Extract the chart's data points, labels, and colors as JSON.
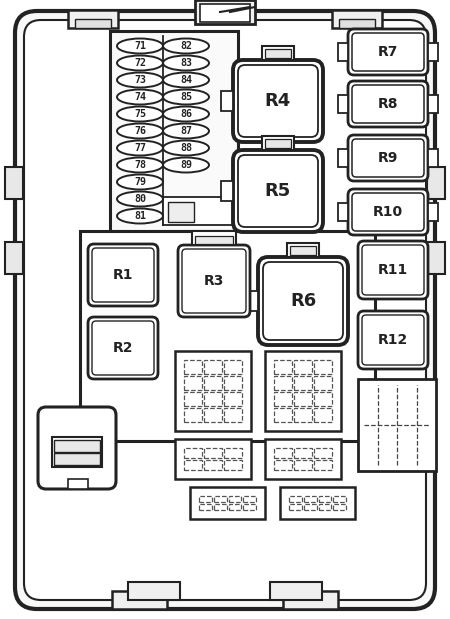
{
  "bg_color": "#ffffff",
  "line_color": "#222222",
  "fuse_left": [
    71,
    72,
    73,
    74,
    75,
    76,
    77,
    78,
    79,
    80,
    81
  ],
  "fuse_right": [
    82,
    83,
    84,
    85,
    86,
    87,
    88,
    89
  ],
  "relay_labels_tr": [
    "R7",
    "R8",
    "R9",
    "R10"
  ],
  "relay_labels_large_top": [
    "R4",
    "R5"
  ],
  "relay_R1": "R1",
  "relay_R2": "R2",
  "relay_R3": "R3",
  "relay_R6": "R6",
  "relay_R11": "R11",
  "relay_R12": "R12"
}
